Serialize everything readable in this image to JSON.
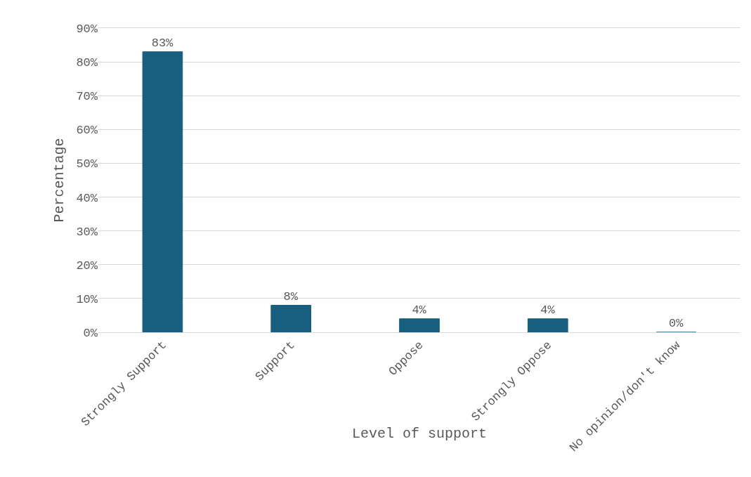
{
  "chart_data": {
    "type": "bar",
    "xlabel": "Level of support",
    "ylabel": "Percentage",
    "categories": [
      "Strongly Support",
      "Support",
      "Oppose",
      "Strongly Oppose",
      "No opinion/don't know"
    ],
    "values": [
      83,
      8,
      4,
      4,
      0
    ],
    "value_labels": [
      "83%",
      "8%",
      "4%",
      "4%",
      "0%"
    ],
    "color": "#175e7f",
    "ylim": [
      0,
      90
    ],
    "yticks": [
      {
        "value": 0,
        "label": "0%"
      },
      {
        "value": 10,
        "label": "10%"
      },
      {
        "value": 20,
        "label": "20%"
      },
      {
        "value": 30,
        "label": "30%"
      },
      {
        "value": 40,
        "label": "40%"
      },
      {
        "value": 50,
        "label": "50%"
      },
      {
        "value": 60,
        "label": "60%"
      },
      {
        "value": 70,
        "label": "70%"
      },
      {
        "value": 80,
        "label": "80%"
      },
      {
        "value": 90,
        "label": "90%"
      }
    ],
    "grid": "y",
    "legend": false
  }
}
